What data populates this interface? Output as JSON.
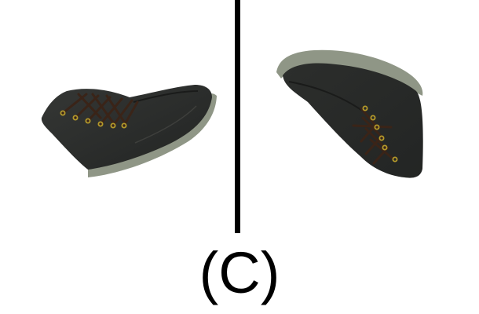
{
  "caption": "(C)",
  "colors": {
    "background": "#ffffff",
    "divider": "#000000",
    "boot_upper": "#2b2d2b",
    "boot_sole": "#8f9686",
    "laces": "#3a2418",
    "eyelets": "#b59a2a"
  },
  "panels": [
    {
      "name": "boot-left",
      "icon": "boot-icon"
    },
    {
      "name": "boot-right",
      "icon": "boot-icon"
    }
  ]
}
